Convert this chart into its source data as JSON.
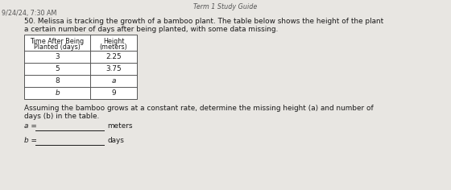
{
  "header_date": "9/24/24, 7:30 AM",
  "page_title": "Term 1 Study Guide",
  "problem_number": "50.",
  "problem_text_line1": "Melissa is tracking the growth of a bamboo plant. The table below shows the height of the plant",
  "problem_text_line2": "a certain number of days after being planted, with some data missing.",
  "col1_header_line1": "Time After Being",
  "col1_header_line2": "Planted (days)",
  "col2_header_line1": "Height",
  "col2_header_line2": "(meters)",
  "table_rows": [
    [
      "3",
      "2.25"
    ],
    [
      "5",
      "3.75"
    ],
    [
      "8",
      "a"
    ],
    [
      "b",
      "9"
    ]
  ],
  "assume_text": "Assuming the bamboo grows at a constant rate, determine the missing height (a) and number of",
  "days_text": "days (b) in the table.",
  "a_label": "a =",
  "a_unit": "meters",
  "b_label": "b =",
  "b_unit": "days",
  "bg_color": "#e8e6e2",
  "text_color": "#1a1a1a",
  "table_border_color": "#555555",
  "title_color": "#555555"
}
